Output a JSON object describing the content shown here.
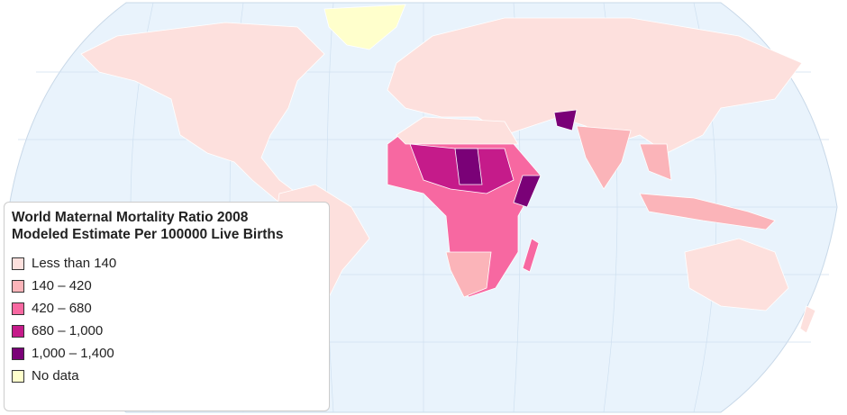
{
  "legend": {
    "title": "World Maternal Mortality Ratio 2008 Modeled Estimate Per 100000 Live Births",
    "items": [
      {
        "label": "Less than 140",
        "color": "#fde0dd"
      },
      {
        "label": "140 – 420",
        "color": "#fbb4b9"
      },
      {
        "label": "420 – 680",
        "color": "#f768a1"
      },
      {
        "label": "680 – 1,000",
        "color": "#c51b8a"
      },
      {
        "label": "1,000 – 1,400",
        "color": "#7a0177"
      },
      {
        "label": "No data",
        "color": "#ffffcc"
      }
    ]
  }
}
